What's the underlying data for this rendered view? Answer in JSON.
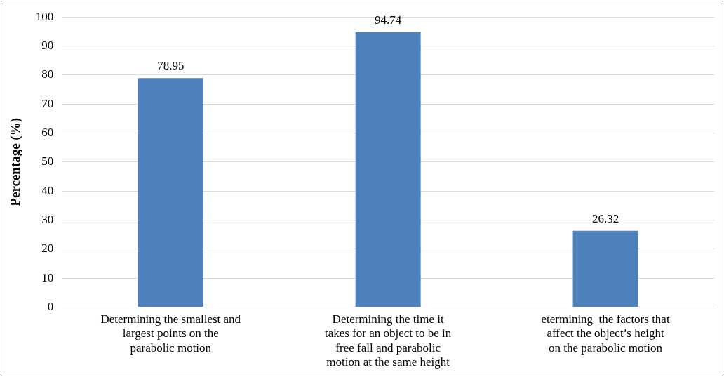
{
  "chart_data": {
    "type": "bar",
    "categories": [
      "Determining the smallest and largest points on the parabolic motion",
      "Determining the time it takes for an object to be in free fall and parabolic motion at the same height",
      "etermining  the factors that affect the object’s height on the parabolic motion"
    ],
    "values": [
      78.95,
      94.74,
      26.32
    ],
    "color": "#4f81bd",
    "ylabel": "Percentage (%)",
    "ylim": [
      0,
      100
    ],
    "yticks": [
      0,
      10,
      20,
      30,
      40,
      50,
      60,
      70,
      80,
      90,
      100
    ],
    "grid": "y",
    "data_labels": true
  }
}
